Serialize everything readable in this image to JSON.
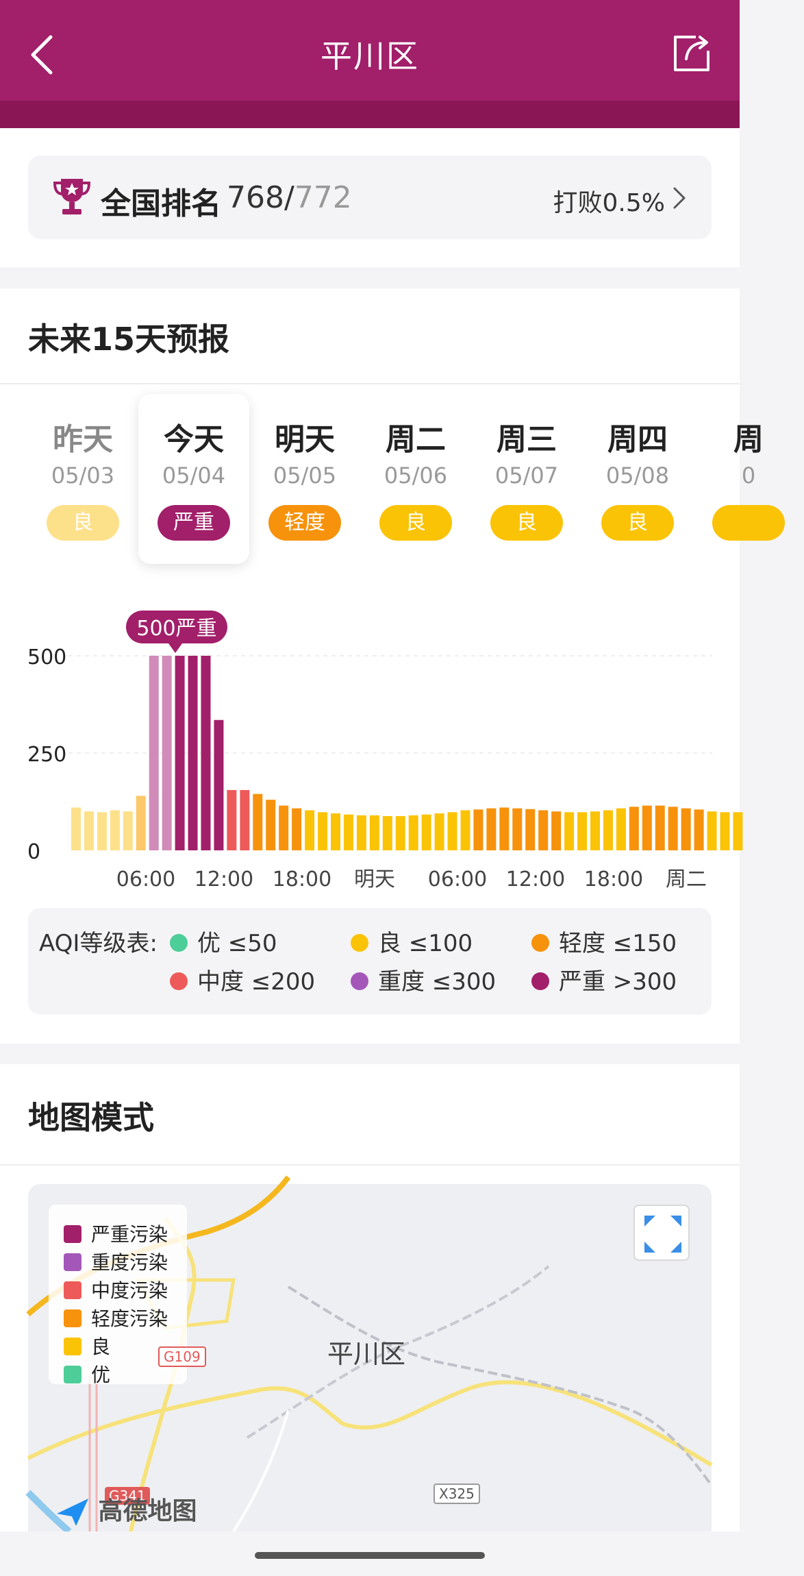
{
  "header": {
    "title": "平川区"
  },
  "ranking": {
    "label": "全国排名",
    "rank": "768/",
    "total": "772",
    "beat": "打败0.5%"
  },
  "forecast": {
    "title": "未来15天预报",
    "days": [
      {
        "name": "昨天",
        "date": "05/03",
        "level": "良",
        "color": "#fde08a",
        "past": true
      },
      {
        "name": "今天",
        "date": "05/04",
        "level": "严重",
        "color": "#a21f6a",
        "active": true
      },
      {
        "name": "明天",
        "date": "05/05",
        "level": "轻度",
        "color": "#f7920c"
      },
      {
        "name": "周二",
        "date": "05/06",
        "level": "良",
        "color": "#fbc305"
      },
      {
        "name": "周三",
        "date": "05/07",
        "level": "良",
        "color": "#fbc305"
      },
      {
        "name": "周四",
        "date": "05/08",
        "level": "良",
        "color": "#fbc305"
      },
      {
        "name": "周",
        "date": "0",
        "level": "",
        "color": "#fbc305"
      }
    ]
  },
  "chart_data": {
    "type": "bar",
    "tooltip": "500严重",
    "yticks": [
      "500",
      "250",
      "0"
    ],
    "ylim": [
      0,
      500
    ],
    "xticks": [
      "06:00",
      "12:00",
      "18:00",
      "明天",
      "06:00",
      "12:00",
      "18:00",
      "周二"
    ],
    "values": [
      110,
      100,
      98,
      103,
      100,
      140,
      500,
      500,
      500,
      500,
      500,
      335,
      155,
      155,
      145,
      130,
      115,
      108,
      103,
      98,
      95,
      92,
      90,
      90,
      88,
      88,
      90,
      92,
      95,
      98,
      103,
      105,
      108,
      110,
      108,
      106,
      103,
      100,
      98,
      98,
      100,
      103,
      108,
      112,
      115,
      115,
      112,
      108,
      105,
      100,
      98,
      98
    ],
    "colors": [
      "#fde08a",
      "#fde08a",
      "#fde08a",
      "#fde08a",
      "#fde08a",
      "#fcc869",
      "#d08bb9",
      "#d08bb9",
      "#a21f6a",
      "#a21f6a",
      "#a21f6a",
      "#a21f6a",
      "#ee5a5a",
      "#ee5a5a",
      "#f7920c",
      "#f7920c",
      "#f7920c",
      "#f7920c",
      "#fbc305",
      "#fbc305",
      "#fbc305",
      "#fbc305",
      "#fbc305",
      "#fbc305",
      "#fbc305",
      "#fbc305",
      "#fbc305",
      "#fbc305",
      "#fbc305",
      "#fbc305",
      "#fbc305",
      "#f7920c",
      "#f7920c",
      "#f7920c",
      "#f7920c",
      "#f7920c",
      "#f7920c",
      "#f7920c",
      "#fbc305",
      "#fbc305",
      "#fbc305",
      "#fbc305",
      "#fbc305",
      "#f7920c",
      "#f7920c",
      "#f7920c",
      "#f7920c",
      "#f7920c",
      "#f7920c",
      "#fbc305",
      "#fbc305",
      "#fbc305"
    ]
  },
  "aqi_legend": {
    "title": "AQI等级表:",
    "items": [
      {
        "label": "优 ≤50",
        "color": "#4dcd98"
      },
      {
        "label": "良 ≤100",
        "color": "#fbc305"
      },
      {
        "label": "轻度 ≤150",
        "color": "#f7920c"
      },
      {
        "label": "中度 ≤200",
        "color": "#ee5a5a"
      },
      {
        "label": "重度 ≤300",
        "color": "#a457b9"
      },
      {
        "label": "严重 >300",
        "color": "#a21f6a"
      }
    ]
  },
  "map_section": {
    "title": "地图模式",
    "legend": [
      {
        "label": "严重污染",
        "color": "#a21f6a"
      },
      {
        "label": "重度污染",
        "color": "#a457b9"
      },
      {
        "label": "中度污染",
        "color": "#ee5a5a"
      },
      {
        "label": "轻度污染",
        "color": "#f7920c"
      },
      {
        "label": "良",
        "color": "#fbc305"
      },
      {
        "label": "优",
        "color": "#4dcd98"
      }
    ],
    "place": "平川区",
    "roads": [
      "G109",
      "G341",
      "X325"
    ],
    "provider": "高德地图"
  }
}
